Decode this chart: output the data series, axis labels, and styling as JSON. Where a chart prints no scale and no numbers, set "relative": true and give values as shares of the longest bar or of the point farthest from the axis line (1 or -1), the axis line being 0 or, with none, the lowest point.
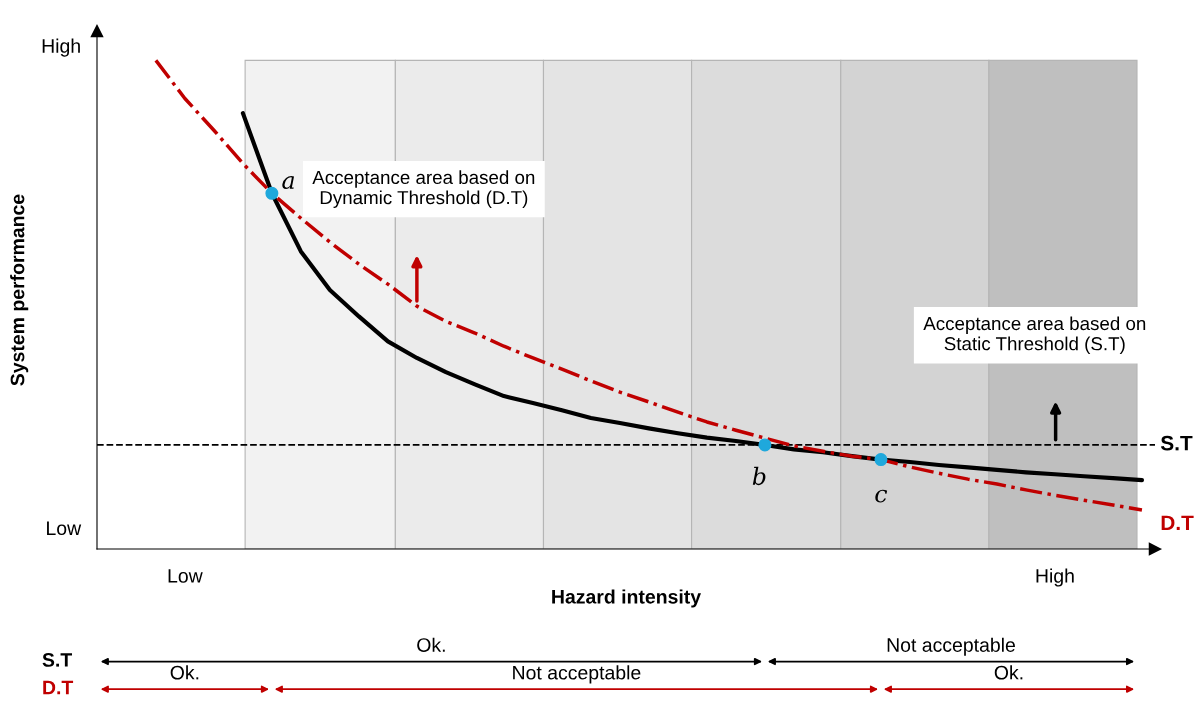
{
  "chart_data": {
    "type": "line",
    "xlabel": "Hazard intensity",
    "ylabel": "System performance",
    "relative": true,
    "categories": [
      null,
      null,
      null,
      "Low",
      null,
      null,
      null,
      null,
      null,
      null,
      null,
      null,
      null,
      null,
      null,
      null,
      null,
      null,
      null,
      null,
      null,
      null,
      null,
      null,
      null,
      null,
      null,
      null,
      null,
      null,
      null,
      null,
      null,
      "High",
      null,
      null,
      null
    ],
    "series": [
      {
        "color": "#000000",
        "line_style": "solid",
        "marker": "none",
        "values": [
          null,
          null,
          null,
          null,
          null,
          0.892,
          0.728,
          0.609,
          0.53,
          0.476,
          0.425,
          0.391,
          0.362,
          0.337,
          0.313,
          0.299,
          0.284,
          0.268,
          0.258,
          0.247,
          0.237,
          0.228,
          0.221,
          0.213,
          0.204,
          0.198,
          0.19,
          0.183,
          0.178,
          0.172,
          0.167,
          0.162,
          0.157,
          0.153,
          0.149,
          0.145,
          0.141
        ]
      },
      {
        "name": "D.T",
        "color": "#c00000",
        "line_style": "dashdot",
        "marker": "none",
        "values": [
          null,
          null,
          1.0,
          0.922,
          0.857,
          0.789,
          0.728,
          0.677,
          0.628,
          0.583,
          0.542,
          0.497,
          0.466,
          0.442,
          0.415,
          0.391,
          0.368,
          0.344,
          0.321,
          0.301,
          0.28,
          0.26,
          0.243,
          0.227,
          0.211,
          0.2,
          0.19,
          0.183,
          0.168,
          0.155,
          0.143,
          0.133,
          0.121,
          0.11,
          0.1,
          0.09,
          0.08
        ]
      },
      {
        "type": "scatter",
        "color": "#1fa8dc",
        "marker": "circle",
        "values": [
          null,
          null,
          null,
          null,
          null,
          null,
          0.728,
          null,
          null,
          null,
          null,
          null,
          null,
          null,
          null,
          null,
          null,
          null,
          null,
          null,
          null,
          null,
          null,
          0.213,
          null,
          null,
          null,
          0.183,
          null,
          null,
          null,
          null,
          null,
          null,
          null,
          null,
          null
        ]
      }
    ],
    "ref_lines": [
      {
        "axis": "y",
        "value": 0.213,
        "label": "S.T",
        "color": "#000000",
        "line_style": "dashed"
      }
    ],
    "annotations": [
      "a",
      "b",
      "c",
      "Acceptance area based on\nDynamic Threshold (D.T)",
      "Acceptance area based on\nStatic Threshold (S.T)",
      "Low",
      "High",
      "S.T",
      "Ok.",
      "Not acceptable",
      "D.T",
      "Ok.",
      "Not acceptable",
      "Ok."
    ]
  }
}
